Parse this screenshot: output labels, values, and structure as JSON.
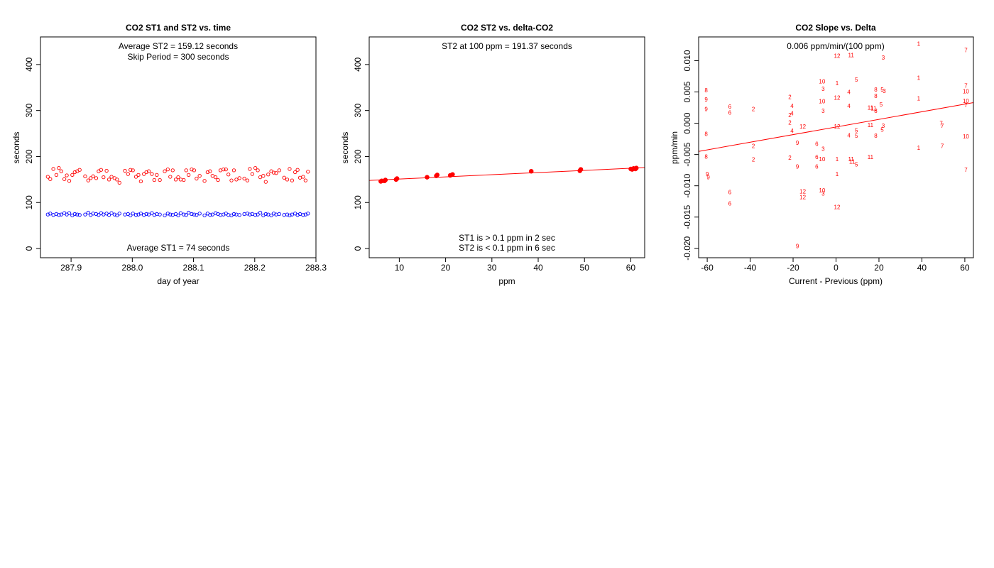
{
  "colors": {
    "st1": "#0000ff",
    "st2": "#ff0000",
    "axis": "#000000",
    "background": "#ffffff"
  },
  "chart_data": [
    {
      "type": "scatter",
      "title": "CO2 ST1 and ST2 vs. time",
      "xlabel": "day of year",
      "ylabel": "seconds",
      "xlim": [
        287.85,
        288.3
      ],
      "ylim": [
        -20,
        460
      ],
      "xticks": [
        "287.9",
        "288.0",
        "288.1",
        "288.2",
        "288.3"
      ],
      "yticks": [
        "0",
        "100",
        "200",
        "300",
        "400"
      ],
      "annotations": [
        "Average ST2 =  159.12  seconds",
        "Skip Period =  300  seconds",
        "Average ST1 =  74  seconds"
      ],
      "series": [
        {
          "color": "#ff0000",
          "marker": "open-circle",
          "x": [
            287.862,
            287.866,
            287.871,
            287.876,
            287.88,
            287.884,
            287.889,
            287.893,
            287.897,
            287.902,
            287.906,
            287.91,
            287.914,
            287.923,
            287.928,
            287.932,
            287.936,
            287.941,
            287.945,
            287.949,
            287.953,
            287.958,
            287.962,
            287.966,
            287.971,
            287.975,
            287.979,
            287.988,
            287.993,
            287.997,
            288.001,
            288.006,
            288.01,
            288.014,
            288.019,
            288.023,
            288.027,
            288.032,
            288.036,
            288.04,
            288.045,
            288.053,
            288.058,
            288.062,
            288.066,
            288.071,
            288.075,
            288.079,
            288.084,
            288.088,
            288.092,
            288.097,
            288.101,
            288.105,
            288.11,
            288.118,
            288.123,
            288.127,
            288.131,
            288.136,
            288.14,
            288.144,
            288.149,
            288.153,
            288.157,
            288.162,
            288.166,
            288.17,
            288.175,
            288.183,
            288.188,
            288.192,
            288.196,
            288.201,
            288.205,
            288.209,
            288.214,
            288.218,
            288.222,
            288.227,
            288.231,
            288.235,
            288.24,
            288.248,
            288.253,
            288.257,
            288.261,
            288.266,
            288.27,
            288.274,
            288.279,
            288.283,
            288.287
          ],
          "y": [
            156,
            151,
            173,
            160,
            175,
            168,
            151,
            159,
            147,
            160,
            166,
            168,
            171,
            157,
            148,
            153,
            157,
            153,
            168,
            171,
            155,
            169,
            150,
            156,
            153,
            150,
            143,
            169,
            162,
            171,
            170,
            156,
            160,
            146,
            162,
            166,
            168,
            162,
            149,
            160,
            149,
            168,
            172,
            156,
            170,
            150,
            155,
            150,
            149,
            170,
            160,
            172,
            170,
            152,
            158,
            147,
            166,
            168,
            158,
            155,
            149,
            170,
            172,
            172,
            161,
            148,
            170,
            150,
            153,
            152,
            148,
            173,
            162,
            175,
            170,
            155,
            158,
            145,
            161,
            168,
            165,
            164,
            170,
            154,
            150,
            173,
            148,
            166,
            171,
            154,
            156,
            148,
            167
          ]
        },
        {
          "color": "#0000ff",
          "marker": "open-circle",
          "x": [
            287.862,
            287.866,
            287.871,
            287.876,
            287.88,
            287.884,
            287.889,
            287.893,
            287.897,
            287.902,
            287.906,
            287.91,
            287.914,
            287.923,
            287.928,
            287.932,
            287.936,
            287.941,
            287.945,
            287.949,
            287.953,
            287.958,
            287.962,
            287.966,
            287.971,
            287.975,
            287.979,
            287.988,
            287.993,
            287.997,
            288.001,
            288.006,
            288.01,
            288.014,
            288.019,
            288.023,
            288.027,
            288.032,
            288.036,
            288.04,
            288.045,
            288.053,
            288.058,
            288.062,
            288.066,
            288.071,
            288.075,
            288.079,
            288.084,
            288.088,
            288.092,
            288.097,
            288.101,
            288.105,
            288.11,
            288.118,
            288.123,
            288.127,
            288.131,
            288.136,
            288.14,
            288.144,
            288.149,
            288.153,
            288.157,
            288.162,
            288.166,
            288.17,
            288.175,
            288.183,
            288.188,
            288.192,
            288.196,
            288.201,
            288.205,
            288.209,
            288.214,
            288.218,
            288.222,
            288.227,
            288.231,
            288.235,
            288.24,
            288.248,
            288.253,
            288.257,
            288.261,
            288.266,
            288.27,
            288.274,
            288.279,
            288.283,
            288.287
          ],
          "y": [
            74,
            76,
            73,
            75,
            73,
            74,
            77,
            74,
            77,
            72,
            75,
            74,
            73,
            74,
            78,
            73,
            76,
            75,
            73,
            77,
            74,
            76,
            73,
            77,
            74,
            72,
            76,
            74,
            75,
            72,
            76,
            73,
            74,
            76,
            73,
            75,
            74,
            77,
            73,
            75,
            74,
            72,
            76,
            74,
            73,
            75,
            72,
            77,
            74,
            73,
            78,
            75,
            74,
            73,
            76,
            72,
            76,
            73,
            74,
            77,
            75,
            73,
            74,
            76,
            73,
            72,
            75,
            74,
            73,
            75,
            76,
            74,
            75,
            73,
            74,
            78,
            72,
            75,
            74,
            72,
            76,
            74,
            75,
            73,
            74,
            72,
            74,
            76,
            73,
            75,
            73,
            74,
            76
          ]
        }
      ]
    },
    {
      "type": "scatter",
      "title": "CO2 ST2 vs. delta-CO2",
      "xlabel": "ppm",
      "ylabel": "seconds",
      "xlim": [
        3.5,
        63
      ],
      "ylim": [
        -20,
        460
      ],
      "xticks": [
        "10",
        "20",
        "30",
        "40",
        "50",
        "60"
      ],
      "yticks": [
        "0",
        "100",
        "200",
        "300",
        "400"
      ],
      "annotations": [
        "ST2 at 100 ppm =  191.37  seconds",
        "ST1 is > 0.1 ppm in 2 sec",
        "ST2 is < 0.1 ppm in 6 sec"
      ],
      "series": [
        {
          "color": "#ff0000",
          "marker": "filled-circle",
          "x": [
            6,
            6.2,
            6.8,
            7,
            9.3,
            9.5,
            16,
            18,
            18.2,
            21,
            21.5,
            38.5,
            49,
            49.2,
            60,
            60.3,
            60.6,
            61,
            61.2
          ],
          "y": [
            146,
            147,
            147,
            149,
            150,
            152,
            155,
            158,
            160,
            159,
            161,
            168,
            169,
            172,
            173,
            172,
            174,
            173,
            175
          ]
        }
      ],
      "fit_line": {
        "x": [
          3.5,
          63
        ],
        "y": [
          148,
          176
        ]
      }
    },
    {
      "type": "scatter",
      "title": "CO2 Slope vs. Delta",
      "xlabel": "Current - Previous (ppm)",
      "ylabel": "ppm/min",
      "xlim": [
        -64,
        64
      ],
      "ylim": [
        -0.0215,
        0.0138
      ],
      "xticks": [
        "-60",
        "-40",
        "-20",
        "0",
        "20",
        "40",
        "60"
      ],
      "yticks": [
        "-0.020",
        "-0.015",
        "-0.010",
        "-0.005",
        "0.000",
        "0.005",
        "0.010"
      ],
      "annotations": [
        "0.006  ppm/min/(100 ppm)"
      ],
      "points": [
        {
          "x": 38.5,
          "y": 0.0127,
          "label": "1"
        },
        {
          "x": 60.5,
          "y": 0.0117,
          "label": "7"
        },
        {
          "x": 0.5,
          "y": 0.0108,
          "label": "12"
        },
        {
          "x": 7,
          "y": 0.0109,
          "label": "11"
        },
        {
          "x": 22,
          "y": 0.0105,
          "label": "3"
        },
        {
          "x": 38.5,
          "y": 0.0073,
          "label": "1"
        },
        {
          "x": -6.5,
          "y": 0.0067,
          "label": "10"
        },
        {
          "x": 0.5,
          "y": 0.0064,
          "label": "1"
        },
        {
          "x": 9.5,
          "y": 0.007,
          "label": "5"
        },
        {
          "x": 60.5,
          "y": 0.006,
          "label": "7"
        },
        {
          "x": -60.5,
          "y": 0.0053,
          "label": "8"
        },
        {
          "x": -6,
          "y": 0.0055,
          "label": "3"
        },
        {
          "x": 6,
          "y": 0.005,
          "label": "4"
        },
        {
          "x": 18.5,
          "y": 0.0054,
          "label": "8"
        },
        {
          "x": 21.5,
          "y": 0.0054,
          "label": "5"
        },
        {
          "x": 22.5,
          "y": 0.0052,
          "label": "3"
        },
        {
          "x": 60.5,
          "y": 0.0051,
          "label": "10"
        },
        {
          "x": -60.5,
          "y": 0.0038,
          "label": "9"
        },
        {
          "x": -21.5,
          "y": 0.0042,
          "label": "2"
        },
        {
          "x": 0.5,
          "y": 0.0041,
          "label": "12"
        },
        {
          "x": 18.5,
          "y": 0.0044,
          "label": "8"
        },
        {
          "x": 38.5,
          "y": 0.004,
          "label": "1"
        },
        {
          "x": 60.5,
          "y": 0.0036,
          "label": "10"
        },
        {
          "x": -60.5,
          "y": 0.0023,
          "label": "9"
        },
        {
          "x": -49.5,
          "y": 0.0027,
          "label": "6"
        },
        {
          "x": -38.5,
          "y": 0.0023,
          "label": "2"
        },
        {
          "x": -20.5,
          "y": 0.0028,
          "label": "4"
        },
        {
          "x": -6.5,
          "y": 0.0035,
          "label": "10"
        },
        {
          "x": 6,
          "y": 0.0028,
          "label": "4"
        },
        {
          "x": 16,
          "y": 0.0025,
          "label": "11"
        },
        {
          "x": 17.5,
          "y": 0.0024,
          "label": "11"
        },
        {
          "x": 21,
          "y": 0.003,
          "label": "5"
        },
        {
          "x": 60.5,
          "y": 0.0029,
          "label": "7"
        },
        {
          "x": -49.5,
          "y": 0.0017,
          "label": "6"
        },
        {
          "x": -21.5,
          "y": 0.0013,
          "label": "2"
        },
        {
          "x": -20.5,
          "y": 0.0016,
          "label": "4"
        },
        {
          "x": -6,
          "y": 0.002,
          "label": "3"
        },
        {
          "x": 18.5,
          "y": 0.002,
          "label": "8"
        },
        {
          "x": -21.5,
          "y": 0.0001,
          "label": "2"
        },
        {
          "x": -15.5,
          "y": -0.0005,
          "label": "12"
        },
        {
          "x": 0.5,
          "y": -0.0005,
          "label": "12"
        },
        {
          "x": 16,
          "y": -0.0003,
          "label": "11"
        },
        {
          "x": 22,
          "y": -0.0004,
          "label": "3"
        },
        {
          "x": 49,
          "y": 0.0,
          "label": "7"
        },
        {
          "x": 49.5,
          "y": -0.0004,
          "label": "7"
        },
        {
          "x": -60.5,
          "y": -0.0017,
          "label": "8"
        },
        {
          "x": -20.5,
          "y": -0.0012,
          "label": "4"
        },
        {
          "x": 9.5,
          "y": -0.0011,
          "label": "5"
        },
        {
          "x": 6,
          "y": -0.0019,
          "label": "4"
        },
        {
          "x": 9.5,
          "y": -0.002,
          "label": "5"
        },
        {
          "x": 18.5,
          "y": -0.002,
          "label": "8"
        },
        {
          "x": 21.5,
          "y": -0.001,
          "label": "5"
        },
        {
          "x": 60.5,
          "y": -0.0021,
          "label": "10"
        },
        {
          "x": -38.5,
          "y": -0.0036,
          "label": "2"
        },
        {
          "x": -18,
          "y": -0.0031,
          "label": "9"
        },
        {
          "x": -9,
          "y": -0.0033,
          "label": "6"
        },
        {
          "x": -6,
          "y": -0.0041,
          "label": "3"
        },
        {
          "x": 38.5,
          "y": -0.0039,
          "label": "1"
        },
        {
          "x": 49.5,
          "y": -0.0036,
          "label": "7"
        },
        {
          "x": -60.5,
          "y": -0.0053,
          "label": "8"
        },
        {
          "x": -38.5,
          "y": -0.0058,
          "label": "2"
        },
        {
          "x": -21.5,
          "y": -0.0055,
          "label": "2"
        },
        {
          "x": -18,
          "y": -0.0069,
          "label": "9"
        },
        {
          "x": -9,
          "y": -0.0054,
          "label": "6"
        },
        {
          "x": -9,
          "y": -0.0069,
          "label": "6"
        },
        {
          "x": -6.5,
          "y": -0.0057,
          "label": "10"
        },
        {
          "x": 0.5,
          "y": -0.0057,
          "label": "1"
        },
        {
          "x": 7,
          "y": -0.0057,
          "label": "11"
        },
        {
          "x": 7.5,
          "y": -0.0061,
          "label": "11"
        },
        {
          "x": 9.5,
          "y": -0.0066,
          "label": "5"
        },
        {
          "x": 16,
          "y": -0.0054,
          "label": "11"
        },
        {
          "x": 60.5,
          "y": -0.0074,
          "label": "7"
        },
        {
          "x": -60,
          "y": -0.0081,
          "label": "9"
        },
        {
          "x": -59.5,
          "y": -0.0086,
          "label": "9"
        },
        {
          "x": 0.5,
          "y": -0.0081,
          "label": "1"
        },
        {
          "x": -49.5,
          "y": -0.011,
          "label": "6"
        },
        {
          "x": -15.5,
          "y": -0.0109,
          "label": "12"
        },
        {
          "x": -6.5,
          "y": -0.0107,
          "label": "10"
        },
        {
          "x": -6,
          "y": -0.0112,
          "label": "3"
        },
        {
          "x": -15.5,
          "y": -0.0118,
          "label": "12"
        },
        {
          "x": -49.5,
          "y": -0.0128,
          "label": "6"
        },
        {
          "x": 0.5,
          "y": -0.0134,
          "label": "12"
        },
        {
          "x": -18,
          "y": -0.0196,
          "label": "9"
        }
      ],
      "fit_line": {
        "x": [
          -64,
          64
        ],
        "y": [
          -0.0045,
          0.0033
        ]
      }
    }
  ]
}
